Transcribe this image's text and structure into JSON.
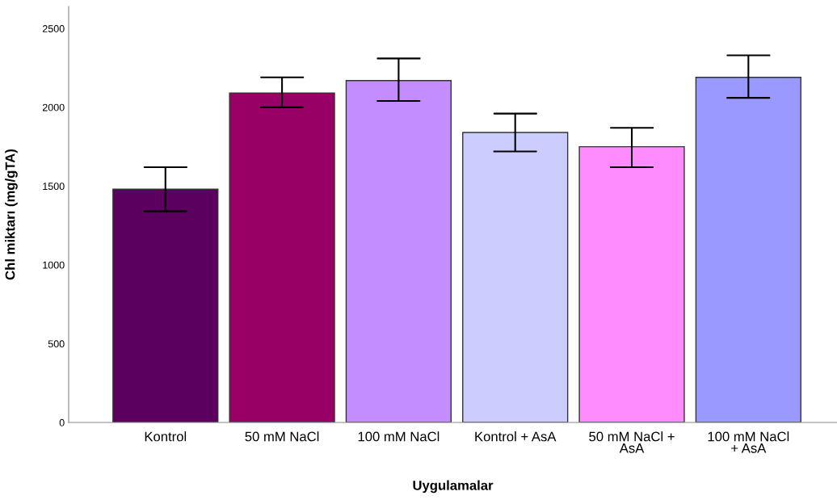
{
  "chart_data": {
    "type": "bar",
    "xlabel": "Uygulamalar",
    "ylabel": "Chl miktarı (mg/gTA)",
    "categories": [
      "Kontrol",
      "50 mM NaCl",
      "100 mM NaCl",
      "Kontrol + AsA",
      "50 mM NaCl +\nAsA",
      "100 mM NaCl\n+ AsA"
    ],
    "values": [
      1480,
      2090,
      2170,
      1840,
      1750,
      2190
    ],
    "colors": [
      "#5c0060",
      "#990066",
      "#c38cff",
      "#ccccff",
      "#ff8cff",
      "#9999ff"
    ],
    "errors": [
      [
        1340,
        1620
      ],
      [
        2000,
        2190
      ],
      [
        2040,
        2310
      ],
      [
        1720,
        1960
      ],
      [
        1620,
        1870
      ],
      [
        2060,
        2330
      ]
    ],
    "ylim": [
      0,
      2640
    ],
    "yticks": [
      0,
      500,
      1000,
      1500,
      2000,
      2500
    ],
    "grid": false,
    "legend": false
  }
}
